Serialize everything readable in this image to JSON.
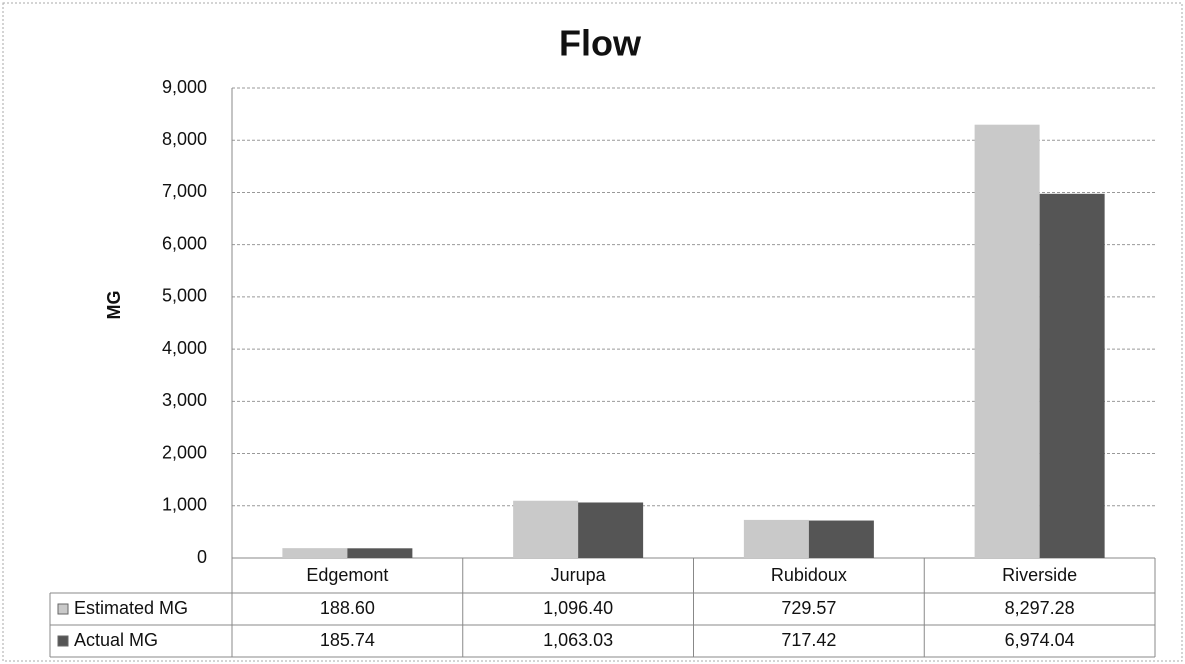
{
  "chart_data": {
    "type": "bar",
    "title": "Flow",
    "y_label": "MG",
    "categories": [
      "Edgemont",
      "Jurupa",
      "Rubidoux",
      "Riverside"
    ],
    "series": [
      {
        "name": "Estimated MG",
        "color": "#c9c9c9",
        "values": [
          188.6,
          1096.4,
          729.57,
          8297.28
        ],
        "value_labels": [
          "188.60",
          "1,096.40",
          "729.57",
          "8,297.28"
        ]
      },
      {
        "name": "Actual MG",
        "color": "#555555",
        "values": [
          185.74,
          1063.03,
          717.42,
          6974.04
        ],
        "value_labels": [
          "185.74",
          "1,063.03",
          "717.42",
          "6,974.04"
        ]
      }
    ],
    "ylim": [
      0,
      9000
    ],
    "yticks": [
      0,
      {
        "value": 1000,
        "label": "1,000"
      },
      {
        "value": 2000,
        "label": "2,000"
      },
      {
        "value": 3000,
        "label": "3,000"
      },
      {
        "value": 4000,
        "label": "4,000"
      },
      {
        "value": 5000,
        "label": "5,000"
      },
      {
        "value": 6000,
        "label": "6,000"
      },
      {
        "value": 7000,
        "label": "7,000"
      },
      {
        "value": 8000,
        "label": "8,000"
      },
      {
        "value": 9000,
        "label": "9,000"
      }
    ],
    "grid": true
  }
}
